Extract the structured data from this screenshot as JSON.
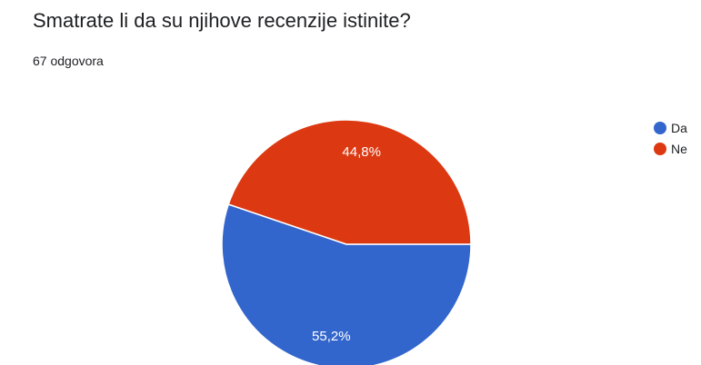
{
  "question": {
    "title": "Smatrate li da su njihove recenzije istinite?",
    "response_count": "67 odgovora"
  },
  "chart_data": {
    "type": "pie",
    "title": "Smatrate li da su njihove recenzije istinite?",
    "subtitle": "67 odgovora",
    "legend_position": "right",
    "slices": [
      {
        "name": "Da",
        "value": 55.2,
        "label": "55,2%",
        "color": "#3366cc"
      },
      {
        "name": "Ne",
        "value": 44.8,
        "label": "44,8%",
        "color": "#dc3912"
      }
    ]
  }
}
